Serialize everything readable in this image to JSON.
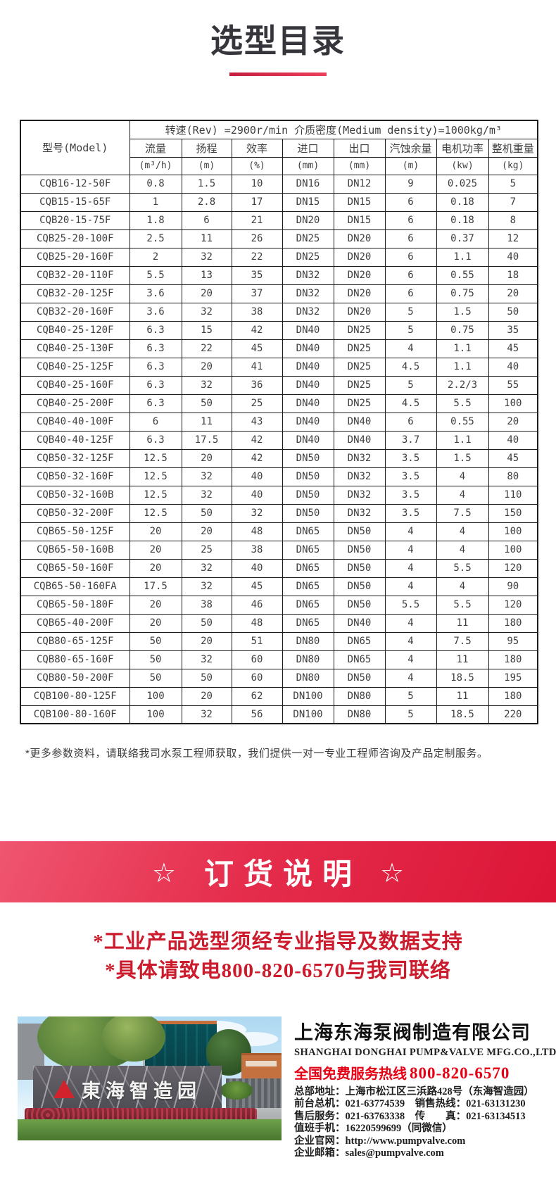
{
  "title": "选型目录",
  "table": {
    "condition": "转速(Rev) =2900r/min  介质密度(Medium density)=1000kg/m³",
    "model_header": "型号(Model)",
    "columns": [
      "流量",
      "扬程",
      "效率",
      "进口",
      "出口",
      "汽蚀余量",
      "电机功率",
      "整机重量"
    ],
    "units": [
      "(m³/h)",
      "(m)",
      "(%)",
      "(mm)",
      "(mm)",
      "(m)",
      "(kw)",
      "(kg)"
    ],
    "rows": [
      [
        "CQB16-12-50F",
        "0.8",
        "1.5",
        "10",
        "DN16",
        "DN12",
        "9",
        "0.025",
        "5"
      ],
      [
        "CQB15-15-65F",
        "1",
        "2.8",
        "17",
        "DN15",
        "DN15",
        "6",
        "0.18",
        "7"
      ],
      [
        "CQB20-15-75F",
        "1.8",
        "6",
        "21",
        "DN20",
        "DN15",
        "6",
        "0.18",
        "8"
      ],
      [
        "CQB25-20-100F",
        "2.5",
        "11",
        "26",
        "DN25",
        "DN20",
        "6",
        "0.37",
        "12"
      ],
      [
        "CQB25-20-160F",
        "2",
        "32",
        "22",
        "DN25",
        "DN20",
        "6",
        "1.1",
        "40"
      ],
      [
        "CQB32-20-110F",
        "5.5",
        "13",
        "35",
        "DN32",
        "DN20",
        "6",
        "0.55",
        "18"
      ],
      [
        "CQB32-20-125F",
        "3.6",
        "20",
        "37",
        "DN32",
        "DN20",
        "6",
        "0.75",
        "20"
      ],
      [
        "CQB32-20-160F",
        "3.6",
        "32",
        "38",
        "DN32",
        "DN20",
        "5",
        "1.5",
        "50"
      ],
      [
        "CQB40-25-120F",
        "6.3",
        "15",
        "42",
        "DN40",
        "DN25",
        "5",
        "0.75",
        "35"
      ],
      [
        "CQB40-25-130F",
        "6.3",
        "22",
        "45",
        "DN40",
        "DN25",
        "4",
        "1.1",
        "45"
      ],
      [
        "CQB40-25-125F",
        "6.3",
        "20",
        "41",
        "DN40",
        "DN25",
        "4.5",
        "1.1",
        "40"
      ],
      [
        "CQB40-25-160F",
        "6.3",
        "32",
        "36",
        "DN40",
        "DN25",
        "5",
        "2.2/3",
        "55"
      ],
      [
        "CQB40-25-200F",
        "6.3",
        "50",
        "25",
        "DN40",
        "DN25",
        "4.5",
        "5.5",
        "100"
      ],
      [
        "CQB40-40-100F",
        "6",
        "11",
        "43",
        "DN40",
        "DN40",
        "6",
        "0.55",
        "20"
      ],
      [
        "CQB40-40-125F",
        "6.3",
        "17.5",
        "42",
        "DN40",
        "DN40",
        "3.7",
        "1.1",
        "40"
      ],
      [
        "CQB50-32-125F",
        "12.5",
        "20",
        "42",
        "DN50",
        "DN32",
        "3.5",
        "1.5",
        "45"
      ],
      [
        "CQB50-32-160F",
        "12.5",
        "32",
        "40",
        "DN50",
        "DN32",
        "3.5",
        "4",
        "80"
      ],
      [
        "CQB50-32-160B",
        "12.5",
        "32",
        "40",
        "DN50",
        "DN32",
        "3.5",
        "4",
        "110"
      ],
      [
        "CQB50-32-200F",
        "12.5",
        "50",
        "32",
        "DN50",
        "DN32",
        "3.5",
        "7.5",
        "150"
      ],
      [
        "CQB65-50-125F",
        "20",
        "20",
        "48",
        "DN65",
        "DN50",
        "4",
        "4",
        "100"
      ],
      [
        "CQB65-50-160B",
        "20",
        "25",
        "38",
        "DN65",
        "DN50",
        "4",
        "4",
        "100"
      ],
      [
        "CQB65-50-160F",
        "20",
        "32",
        "40",
        "DN65",
        "DN50",
        "4",
        "5.5",
        "120"
      ],
      [
        "CQB65-50-160FA",
        "17.5",
        "32",
        "45",
        "DN65",
        "DN50",
        "4",
        "4",
        "90"
      ],
      [
        "CQB65-50-180F",
        "20",
        "38",
        "46",
        "DN65",
        "DN50",
        "5.5",
        "5.5",
        "120"
      ],
      [
        "CQB65-40-200F",
        "20",
        "50",
        "48",
        "DN65",
        "DN40",
        "4",
        "11",
        "180"
      ],
      [
        "CQB80-65-125F",
        "50",
        "20",
        "51",
        "DN80",
        "DN65",
        "4",
        "7.5",
        "95"
      ],
      [
        "CQB80-65-160F",
        "50",
        "32",
        "60",
        "DN80",
        "DN65",
        "4",
        "11",
        "180"
      ],
      [
        "CQB80-50-200F",
        "50",
        "50",
        "60",
        "DN80",
        "DN50",
        "4",
        "18.5",
        "195"
      ],
      [
        "CQB100-80-125F",
        "100",
        "20",
        "62",
        "DN100",
        "DN80",
        "5",
        "11",
        "180"
      ],
      [
        "CQB100-80-160F",
        "100",
        "32",
        "56",
        "DN100",
        "DN80",
        "5",
        "18.5",
        "220"
      ]
    ]
  },
  "footnote": "*更多参数资料，请联络我司水泵工程师获取，我们提供一对一专业工程师咨询及产品定制服务。",
  "order_banner": {
    "star_left": "☆",
    "text": "订货说明",
    "star_right": "☆"
  },
  "notice_lines": [
    "*工业产品选型须经专业指导及数据支持",
    "*具体请致电800-820-6570与我司联络"
  ],
  "company": {
    "photo_sign": "東海智造园",
    "name_cn": "上海东海泵阀制造有限公司",
    "name_en": "SHANGHAI DONGHAI PUMP&VALVE MFG.CO.,LTD.",
    "hotline_label": "全国免费服务热线",
    "hotline_number": "800-820-6570",
    "details": [
      "总部地址：上海市松江区三浜路428号（东海智造园）",
      "前台总机：021-63774539　销售热线：021-63131230",
      "售后服务：021-63763338　传　　真：021-63134513",
      "值班手机：16220599699（同微信）",
      "企业官网：http://www.pumpvalve.com",
      "企业邮箱：sales@pumpvalve.com"
    ]
  },
  "colors": {
    "accent_red": "#e2314b",
    "banner_red_start": "#ef5670",
    "banner_red_end": "#dc1536",
    "notice_red": "#cc1b2c",
    "hotline_red": "#e60014",
    "logo_red": "#d2232d"
  }
}
